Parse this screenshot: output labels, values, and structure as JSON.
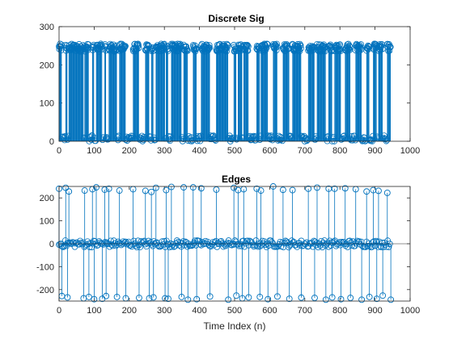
{
  "chart_data": [
    {
      "type": "stem",
      "title": "Discrete Sig",
      "xlabel": "",
      "ylabel": "",
      "xlim": [
        0,
        1000
      ],
      "ylim": [
        0,
        300
      ],
      "xticks": [
        "0",
        "100",
        "200",
        "300",
        "400",
        "500",
        "600",
        "700",
        "800",
        "900",
        "1000"
      ],
      "yticks": [
        "0",
        "100",
        "200",
        "300"
      ],
      "n_samples": 945,
      "levels": {
        "low_range": [
          0,
          15
        ],
        "high_range": [
          235,
          255
        ]
      },
      "high_segments": [
        [
          0,
          8
        ],
        [
          19,
          24
        ],
        [
          28,
          70
        ],
        [
          73,
          85
        ],
        [
          95,
          100
        ],
        [
          106,
          123
        ],
        [
          130,
          134
        ],
        [
          142,
          165
        ],
        [
          172,
          190
        ],
        [
          211,
          228
        ],
        [
          246,
          257
        ],
        [
          263,
          269
        ],
        [
          276,
          302
        ],
        [
          305,
          311
        ],
        [
          320,
          349
        ],
        [
          355,
          367
        ],
        [
          382,
          392
        ],
        [
          405,
          430
        ],
        [
          448,
          482
        ],
        [
          498,
          505
        ],
        [
          510,
          522
        ],
        [
          526,
          540
        ],
        [
          563,
          572
        ],
        [
          575,
          595
        ],
        [
          610,
          622
        ],
        [
          638,
          656
        ],
        [
          665,
          690
        ],
        [
          710,
          728
        ],
        [
          735,
          760
        ],
        [
          768,
          778
        ],
        [
          785,
          803
        ],
        [
          815,
          830
        ],
        [
          845,
          862
        ],
        [
          876,
          884
        ],
        [
          895,
          905
        ],
        [
          910,
          922
        ],
        [
          935,
          945
        ]
      ],
      "color": "#0072bd"
    },
    {
      "type": "stem",
      "title": "Edges",
      "xlabel": "Time Index (n)",
      "ylabel": "",
      "xlim": [
        0,
        1000
      ],
      "ylim": [
        -250,
        250
      ],
      "xticks": [
        "0",
        "100",
        "200",
        "300",
        "400",
        "500",
        "600",
        "700",
        "800",
        "900",
        "1000"
      ],
      "yticks": [
        "-200",
        "-100",
        "0",
        "100",
        "200"
      ],
      "noise_range": [
        -15,
        15
      ],
      "rising_edges": [
        [
          0,
          240
        ],
        [
          19,
          244
        ],
        [
          28,
          228
        ],
        [
          73,
          232
        ],
        [
          95,
          238
        ],
        [
          106,
          246
        ],
        [
          130,
          236
        ],
        [
          142,
          240
        ],
        [
          172,
          232
        ],
        [
          211,
          238
        ],
        [
          246,
          231
        ],
        [
          263,
          226
        ],
        [
          276,
          244
        ],
        [
          305,
          234
        ],
        [
          320,
          248
        ],
        [
          355,
          246
        ],
        [
          382,
          246
        ],
        [
          405,
          242
        ],
        [
          448,
          236
        ],
        [
          498,
          244
        ],
        [
          510,
          234
        ],
        [
          526,
          238
        ],
        [
          563,
          240
        ],
        [
          575,
          232
        ],
        [
          610,
          250
        ],
        [
          638,
          235
        ],
        [
          665,
          234
        ],
        [
          710,
          240
        ],
        [
          735,
          245
        ],
        [
          768,
          240
        ],
        [
          785,
          240
        ],
        [
          815,
          242
        ],
        [
          845,
          238
        ],
        [
          876,
          228
        ],
        [
          895,
          234
        ],
        [
          910,
          231
        ],
        [
          935,
          222
        ]
      ],
      "falling_edges": [
        [
          8,
          -228
        ],
        [
          24,
          -234
        ],
        [
          70,
          -238
        ],
        [
          85,
          -232
        ],
        [
          100,
          -242
        ],
        [
          123,
          -240
        ],
        [
          134,
          -228
        ],
        [
          165,
          -232
        ],
        [
          190,
          -238
        ],
        [
          228,
          -236
        ],
        [
          257,
          -238
        ],
        [
          269,
          -234
        ],
        [
          302,
          -238
        ],
        [
          311,
          -240
        ],
        [
          349,
          -232
        ],
        [
          367,
          -244
        ],
        [
          392,
          -242
        ],
        [
          430,
          -230
        ],
        [
          482,
          -244
        ],
        [
          505,
          -226
        ],
        [
          522,
          -238
        ],
        [
          540,
          -234
        ],
        [
          572,
          -232
        ],
        [
          595,
          -242
        ],
        [
          622,
          -230
        ],
        [
          656,
          -240
        ],
        [
          690,
          -235
        ],
        [
          728,
          -236
        ],
        [
          760,
          -244
        ],
        [
          778,
          -234
        ],
        [
          803,
          -242
        ],
        [
          830,
          -236
        ],
        [
          862,
          -244
        ],
        [
          884,
          -232
        ],
        [
          905,
          -240
        ],
        [
          922,
          -226
        ],
        [
          945,
          -244
        ]
      ],
      "color": "#0072bd"
    }
  ]
}
